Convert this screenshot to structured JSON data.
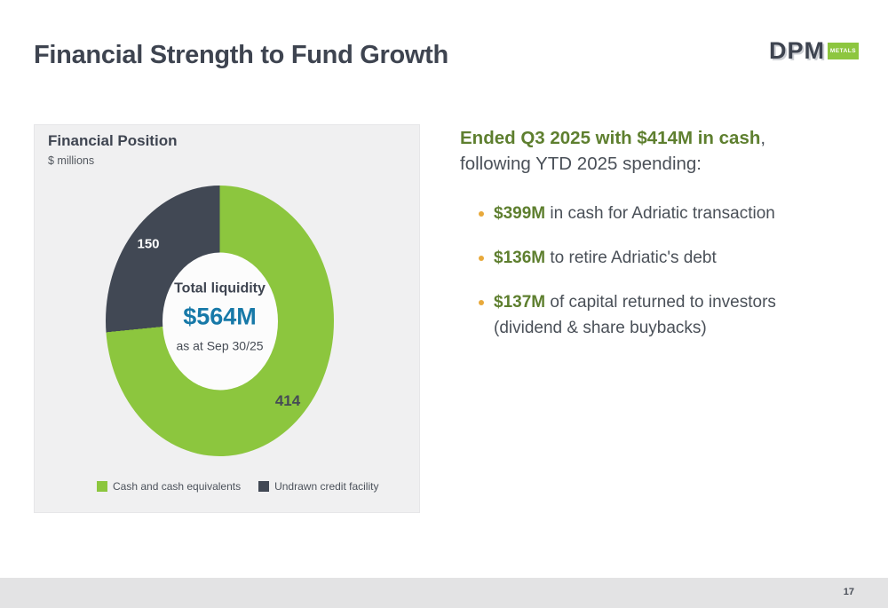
{
  "slide": {
    "title": "Financial Strength to Fund Growth",
    "page_number": "17"
  },
  "logo": {
    "name": "DPM",
    "tag": "METALS",
    "tag_color": "#8DC63F"
  },
  "panel": {
    "title": "Financial Position",
    "subtitle": "$ millions"
  },
  "chart_data": {
    "type": "pie",
    "variant": "donut",
    "title": "Financial Position",
    "units": "$ millions",
    "categories": [
      "Cash and cash equivalents",
      "Undrawn credit facility"
    ],
    "values": [
      414,
      150
    ],
    "colors": [
      "#8CC63E",
      "#414854"
    ],
    "data_labels": [
      "414",
      "150"
    ],
    "total": 564,
    "center_label": "Total liquidity",
    "center_value": "$564M",
    "center_note": "as at Sep 30/25",
    "legend_position": "bottom",
    "start_angle_deg": 0,
    "direction": "clockwise"
  },
  "content": {
    "heading_highlight": "Ended Q3 2025 with $414M in cash",
    "heading_tail": ",",
    "heading_line2": "following YTD 2025 spending:",
    "bullets": [
      {
        "bold": "$399M",
        "rest": " in cash for Adriatic transaction"
      },
      {
        "bold": "$136M",
        "rest": " to retire Adriatic's debt"
      },
      {
        "bold": "$137M",
        "rest": " of capital returned to investors\n(dividend & share buybacks)"
      }
    ]
  },
  "colors": {
    "accent_green": "#8CC63E",
    "dark_slate": "#414854",
    "text_green": "#5E7F2F",
    "value_blue": "#1779A8",
    "bullet_amber": "#E8A93B",
    "panel_bg": "#F0F0F1",
    "footer_bg": "#E3E3E4"
  }
}
